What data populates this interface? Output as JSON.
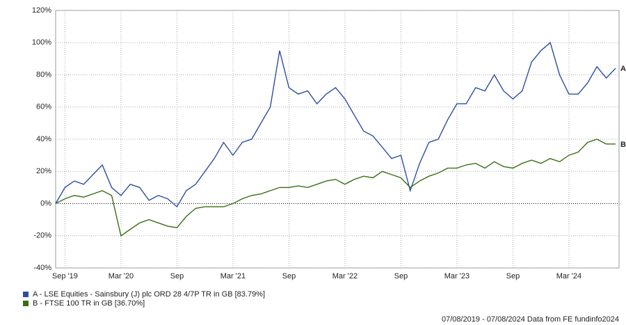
{
  "chart_data": {
    "type": "line",
    "categories": [
      null,
      "Sep '19",
      null,
      null,
      null,
      null,
      null,
      "Mar '20",
      null,
      null,
      null,
      null,
      null,
      "Sep",
      null,
      null,
      null,
      null,
      null,
      "Mar '21",
      null,
      null,
      null,
      null,
      null,
      "Sep",
      null,
      null,
      null,
      null,
      null,
      "Mar '22",
      null,
      null,
      null,
      null,
      null,
      "Sep",
      null,
      null,
      null,
      null,
      null,
      "Mar '23",
      null,
      null,
      null,
      null,
      null,
      "Sep",
      null,
      null,
      null,
      null,
      null,
      "Mar '24",
      null,
      null,
      null,
      null,
      null
    ],
    "series": [
      {
        "name": "A - LSE Equities - Sainsbury (J) plc ORD 28 4/7P TR in GB [83.79%]",
        "label": "A",
        "color": "#2b4ea2",
        "values": [
          0,
          10,
          14,
          12,
          18,
          24,
          10,
          5,
          12,
          10,
          2,
          5,
          3,
          -2,
          8,
          12,
          20,
          28,
          38,
          30,
          38,
          40,
          50,
          60,
          95,
          72,
          68,
          70,
          62,
          68,
          72,
          65,
          55,
          45,
          42,
          35,
          28,
          30,
          8,
          25,
          38,
          40,
          52,
          62,
          62,
          72,
          70,
          80,
          70,
          65,
          70,
          88,
          95,
          100,
          80,
          68,
          68,
          75,
          85,
          78,
          84
        ]
      },
      {
        "name": "B - FTSE 100 TR in GB [36.70%]",
        "label": "B",
        "color": "#3b6e12",
        "values": [
          0,
          3,
          5,
          4,
          6,
          8,
          5,
          -20,
          -16,
          -12,
          -10,
          -12,
          -14,
          -15,
          -8,
          -3,
          -2,
          -2,
          -2,
          0,
          3,
          5,
          6,
          8,
          10,
          10,
          11,
          10,
          12,
          14,
          15,
          12,
          15,
          17,
          16,
          20,
          18,
          16,
          10,
          14,
          17,
          19,
          22,
          22,
          24,
          25,
          22,
          26,
          23,
          22,
          25,
          27,
          25,
          28,
          26,
          30,
          32,
          38,
          40,
          37,
          37
        ]
      }
    ],
    "ylim": [
      -40,
      120
    ],
    "yticks": [
      {
        "value": -40,
        "label": "-40%"
      },
      {
        "value": -20,
        "label": "-20%"
      },
      {
        "value": 0,
        "label": "0%"
      },
      {
        "value": 20,
        "label": "20%"
      },
      {
        "value": 40,
        "label": "40%"
      },
      {
        "value": 60,
        "label": "60%"
      },
      {
        "value": 80,
        "label": "80%"
      },
      {
        "value": 100,
        "label": "100%"
      },
      {
        "value": 120,
        "label": "120%"
      }
    ],
    "grid": true,
    "footer": "07/08/2019 - 07/08/2024 Data from FE fundinfo2024"
  }
}
